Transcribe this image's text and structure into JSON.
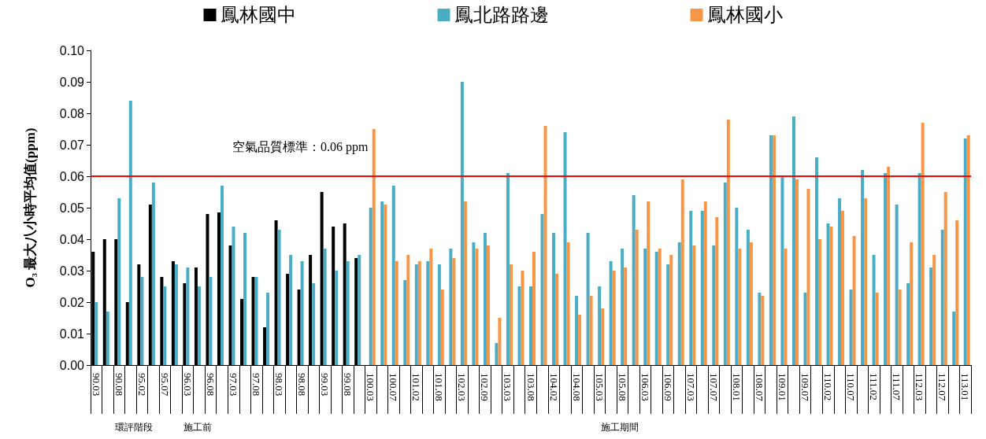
{
  "chart_data": {
    "type": "bar",
    "ylabel": "O₃ 最大八小時平均值(ppm)",
    "categories": [
      "90.03",
      null,
      "90.08",
      null,
      "95.02",
      null,
      "95.07",
      null,
      "96.03",
      null,
      "96.08",
      null,
      "97.03",
      null,
      "97.08",
      null,
      "98.03",
      null,
      "98.08",
      null,
      "99.03",
      null,
      "99.08",
      null,
      "100.03",
      null,
      "100.07",
      null,
      "101.02",
      null,
      "101.08",
      null,
      "102.03",
      null,
      "102.09",
      null,
      "103.03",
      null,
      "103.08",
      null,
      "104.02",
      null,
      "104.08",
      null,
      "105.03",
      null,
      "105.08",
      null,
      "106.03",
      null,
      "106.09",
      null,
      "107.03",
      null,
      "107.07",
      null,
      "108.01",
      null,
      "108.07",
      null,
      "109.01",
      null,
      "109.07",
      null,
      "110.02",
      null,
      "110.07",
      null,
      "111.02",
      null,
      "111.07",
      null,
      "112.03",
      null,
      "112.07",
      null,
      "113.01"
    ],
    "series": [
      {
        "name": "鳳林國中",
        "color": "#000000",
        "values": [
          0.036,
          0.04,
          0.04,
          0.02,
          0.032,
          0.051,
          0.028,
          0.033,
          0.026,
          0.031,
          0.048,
          0.0485,
          0.038,
          0.021,
          0.028,
          0.012,
          0.046,
          0.029,
          0.024,
          0.035,
          0.055,
          0.044,
          0.045,
          0.034,
          null,
          null,
          null,
          null,
          null,
          null,
          null,
          null,
          null,
          null,
          null,
          null,
          null,
          null,
          null,
          null,
          null,
          null,
          null,
          null,
          null,
          null,
          null,
          null,
          null,
          null,
          null,
          null,
          null,
          null,
          null,
          null,
          null,
          null,
          null,
          null,
          null,
          null,
          null,
          null,
          null,
          null,
          null,
          null,
          null,
          null,
          null,
          null,
          null,
          null,
          null,
          null,
          null
        ]
      },
      {
        "name": "鳳北路路邊",
        "color": "#4bacc6",
        "values": [
          0.02,
          0.017,
          0.053,
          0.084,
          0.028,
          0.058,
          0.025,
          0.032,
          0.031,
          0.025,
          0.028,
          0.057,
          0.044,
          0.042,
          0.028,
          0.023,
          0.043,
          0.035,
          0.033,
          0.026,
          0.037,
          0.03,
          0.033,
          0.035,
          0.05,
          0.052,
          0.057,
          0.027,
          0.032,
          0.033,
          0.032,
          0.037,
          0.09,
          0.039,
          0.042,
          0.007,
          0.061,
          0.025,
          0.025,
          0.048,
          0.042,
          0.074,
          0.022,
          0.042,
          0.025,
          0.033,
          0.037,
          0.054,
          0.037,
          0.036,
          0.032,
          0.039,
          0.049,
          0.049,
          0.038,
          0.058,
          0.05,
          0.043,
          0.023,
          0.073,
          0.06,
          0.079,
          0.023,
          0.066,
          0.045,
          0.053,
          0.024,
          0.062,
          0.035,
          0.061,
          0.051,
          0.026,
          0.061,
          0.031,
          0.043,
          0.017,
          0.072
        ]
      },
      {
        "name": "鳳林國小",
        "color": "#f79646",
        "values": [
          null,
          null,
          null,
          null,
          null,
          null,
          null,
          null,
          null,
          null,
          null,
          null,
          null,
          null,
          null,
          null,
          null,
          null,
          null,
          null,
          null,
          null,
          null,
          null,
          0.075,
          0.051,
          0.033,
          0.035,
          0.033,
          0.037,
          0.024,
          0.034,
          0.052,
          0.037,
          0.038,
          0.015,
          0.032,
          0.03,
          0.036,
          0.076,
          0.029,
          0.039,
          0.016,
          0.022,
          0.018,
          0.03,
          0.031,
          0.043,
          0.052,
          0.037,
          0.035,
          0.059,
          0.038,
          0.052,
          0.047,
          0.078,
          0.037,
          0.039,
          0.022,
          0.073,
          0.037,
          0.059,
          0.056,
          0.04,
          0.044,
          0.049,
          0.041,
          0.053,
          0.023,
          0.063,
          0.024,
          0.039,
          0.077,
          0.035,
          0.055,
          0.046,
          0.073
        ]
      }
    ],
    "ylim": [
      0,
      0.1
    ],
    "yticks": [
      {
        "value": 0,
        "label": "0.00"
      },
      {
        "value": 0.01,
        "label": "0.01"
      },
      {
        "value": 0.02,
        "label": "0.02"
      },
      {
        "value": 0.03,
        "label": "0.03"
      },
      {
        "value": 0.04,
        "label": "0.04"
      },
      {
        "value": 0.05,
        "label": "0.05"
      },
      {
        "value": 0.06,
        "label": "0.06"
      },
      {
        "value": 0.07,
        "label": "0.07"
      },
      {
        "value": 0.08,
        "label": "0.08"
      },
      {
        "value": 0.09,
        "label": "0.09"
      },
      {
        "value": 0.1,
        "label": "0.10"
      }
    ],
    "ref_lines": [
      {
        "axis": "y",
        "value": 0.06,
        "label": "空氣品質標準：0.06 ppm",
        "color": "#ff0000"
      }
    ],
    "annotations": [
      "環評階段",
      "施工前",
      "施工期間"
    ],
    "grid": false,
    "legend": "top"
  }
}
